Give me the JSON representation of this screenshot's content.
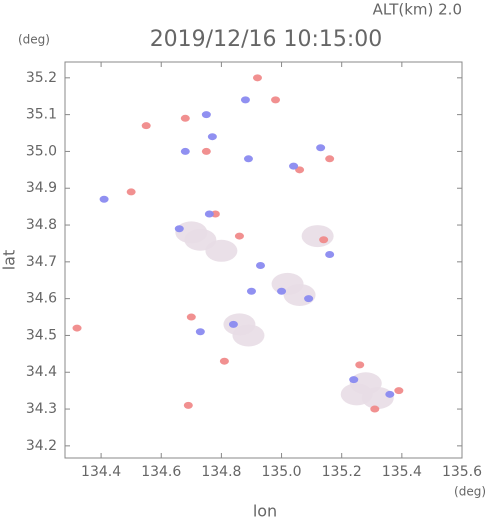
{
  "chart_data": {
    "type": "scatter",
    "title": "2019/12/16 10:15:00",
    "subtitle": "ALT(km)  2.0",
    "y_unit": "(deg)",
    "x_unit": "(deg)",
    "x_label": "lon",
    "y_label": "lat",
    "xlim": [
      134.28,
      135.6
    ],
    "ylim": [
      34.167,
      35.243
    ],
    "xticks": [
      134.4,
      134.6,
      134.8,
      {
        "value": 135,
        "label": "135.0"
      },
      135.2,
      135.4,
      135.6
    ],
    "yticks": [
      34.2,
      34.3,
      34.4,
      34.5,
      34.6,
      34.7,
      34.8,
      34.9,
      {
        "value": 35,
        "label": "35.0"
      },
      35.1,
      35.2
    ],
    "grid": false,
    "series": [
      {
        "color": "#e8dde6",
        "x": [
          135.25,
          135.32,
          135.28,
          134.89,
          134.86,
          134.73,
          134.7,
          135.06,
          135.02,
          135.12,
          134.8
        ],
        "values": [
          34.34,
          34.33,
          34.37,
          34.5,
          34.53,
          34.76,
          34.78,
          34.61,
          34.64,
          34.77,
          34.73
        ]
      },
      {
        "color": "#f08a8a",
        "x": [
          134.92,
          134.68,
          134.5,
          134.32,
          134.69,
          135.31,
          135.39,
          134.86,
          134.78,
          134.7,
          134.81,
          134.55,
          135.16,
          135.14,
          135.26,
          134.98,
          135.06,
          134.75
        ],
        "values": [
          35.2,
          35.09,
          34.89,
          34.52,
          34.31,
          34.3,
          34.35,
          34.77,
          34.83,
          34.55,
          34.43,
          35.07,
          34.98,
          34.76,
          34.42,
          35.14,
          34.95,
          35.0
        ]
      },
      {
        "color": "#8a8af0",
        "x": [
          134.88,
          134.75,
          134.68,
          134.41,
          134.76,
          134.66,
          135.04,
          134.89,
          135.16,
          135.09,
          134.84,
          134.73,
          135.24,
          135.36,
          135.0,
          134.9,
          135.13,
          134.77,
          134.93
        ],
        "values": [
          35.14,
          35.1,
          35.0,
          34.87,
          34.83,
          34.79,
          34.96,
          34.98,
          34.72,
          34.6,
          34.53,
          34.51,
          34.38,
          34.34,
          34.62,
          34.62,
          35.01,
          35.04,
          34.69
        ]
      }
    ]
  }
}
